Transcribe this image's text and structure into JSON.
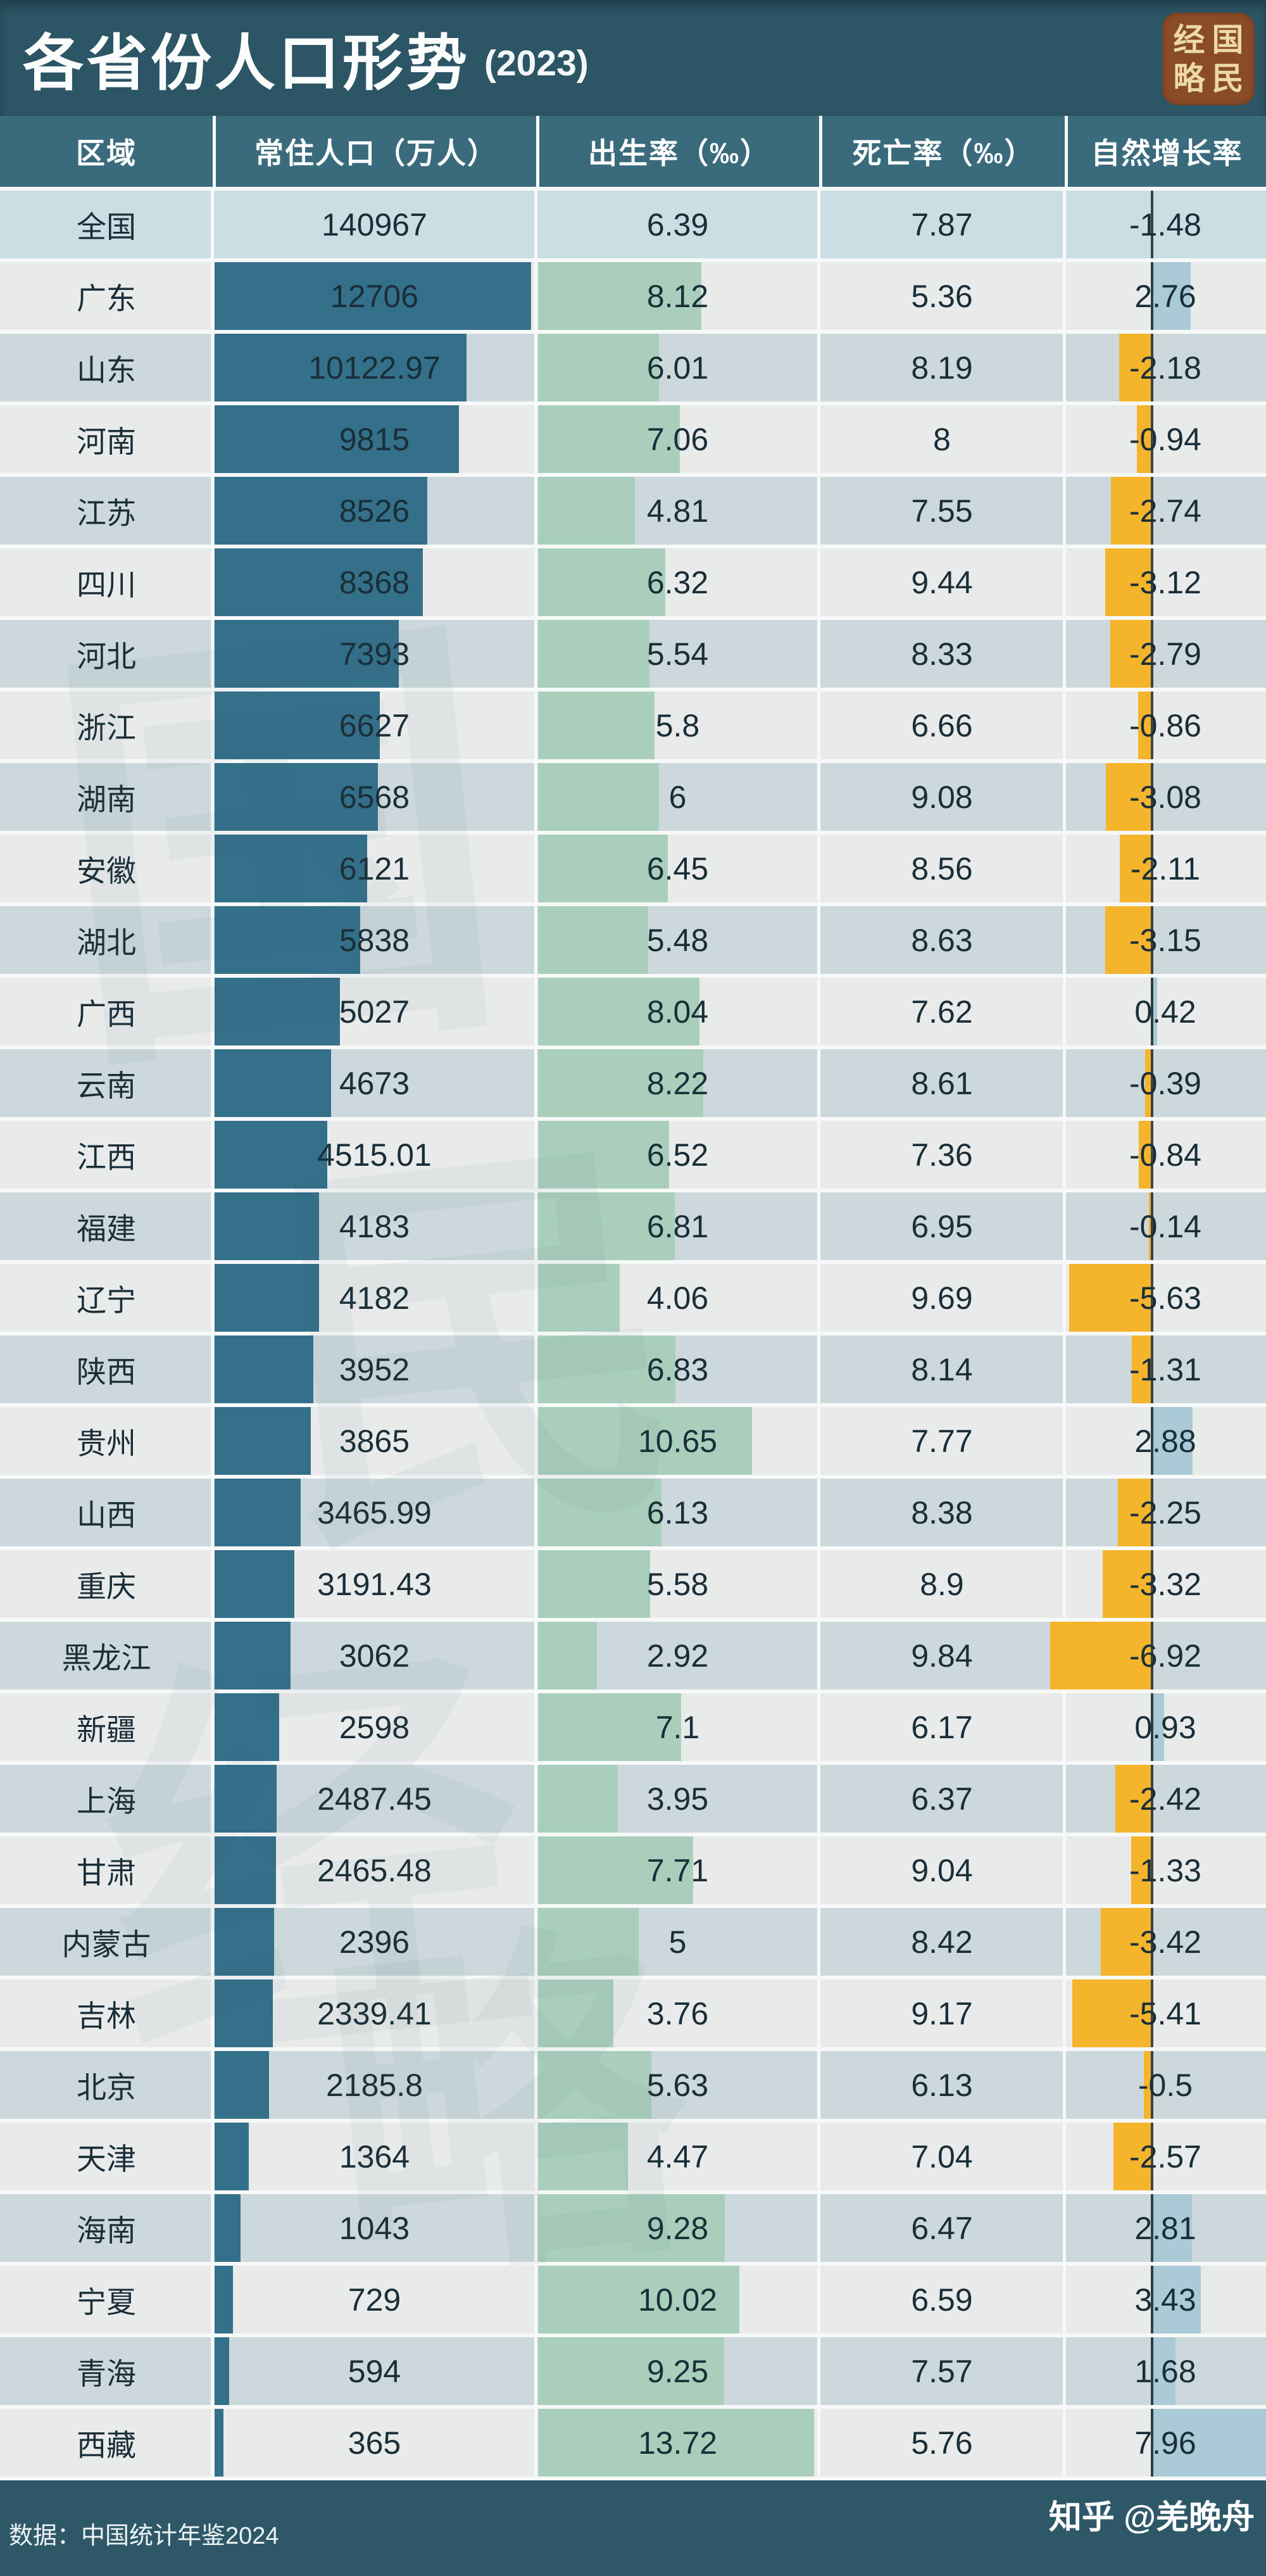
{
  "title": {
    "text": "各省份人口形势",
    "year": "(2023)"
  },
  "logo": {
    "chars": [
      "经",
      "国",
      "略",
      "民"
    ]
  },
  "header": {
    "columns": [
      "区域",
      "常住人口（万人）",
      "出生率（‰）",
      "死亡率（‰）",
      "自然增长率"
    ]
  },
  "rows": [
    {
      "region": "全国",
      "population": "140967",
      "birth_rate": "6.39",
      "death_rate": "7.87",
      "growth_rate": "-1.48"
    },
    {
      "region": "广东",
      "population": "12706",
      "birth_rate": "8.12",
      "death_rate": "5.36",
      "growth_rate": "2.76"
    },
    {
      "region": "山东",
      "population": "10122.97",
      "birth_rate": "6.01",
      "death_rate": "8.19",
      "growth_rate": "-2.18"
    },
    {
      "region": "河南",
      "population": "9815",
      "birth_rate": "7.06",
      "death_rate": "8",
      "growth_rate": "-0.94"
    },
    {
      "region": "江苏",
      "population": "8526",
      "birth_rate": "4.81",
      "death_rate": "7.55",
      "growth_rate": "-2.74"
    },
    {
      "region": "四川",
      "population": "8368",
      "birth_rate": "6.32",
      "death_rate": "9.44",
      "growth_rate": "-3.12"
    },
    {
      "region": "河北",
      "population": "7393",
      "birth_rate": "5.54",
      "death_rate": "8.33",
      "growth_rate": "-2.79"
    },
    {
      "region": "浙江",
      "population": "6627",
      "birth_rate": "5.8",
      "death_rate": "6.66",
      "growth_rate": "-0.86"
    },
    {
      "region": "湖南",
      "population": "6568",
      "birth_rate": "6",
      "death_rate": "9.08",
      "growth_rate": "-3.08"
    },
    {
      "region": "安徽",
      "population": "6121",
      "birth_rate": "6.45",
      "death_rate": "8.56",
      "growth_rate": "-2.11"
    },
    {
      "region": "湖北",
      "population": "5838",
      "birth_rate": "5.48",
      "death_rate": "8.63",
      "growth_rate": "-3.15"
    },
    {
      "region": "广西",
      "population": "5027",
      "birth_rate": "8.04",
      "death_rate": "7.62",
      "growth_rate": "0.42"
    },
    {
      "region": "云南",
      "population": "4673",
      "birth_rate": "8.22",
      "death_rate": "8.61",
      "growth_rate": "-0.39"
    },
    {
      "region": "江西",
      "population": "4515.01",
      "birth_rate": "6.52",
      "death_rate": "7.36",
      "growth_rate": "-0.84"
    },
    {
      "region": "福建",
      "population": "4183",
      "birth_rate": "6.81",
      "death_rate": "6.95",
      "growth_rate": "-0.14"
    },
    {
      "region": "辽宁",
      "population": "4182",
      "birth_rate": "4.06",
      "death_rate": "9.69",
      "growth_rate": "-5.63"
    },
    {
      "region": "陕西",
      "population": "3952",
      "birth_rate": "6.83",
      "death_rate": "8.14",
      "growth_rate": "-1.31"
    },
    {
      "region": "贵州",
      "population": "3865",
      "birth_rate": "10.65",
      "death_rate": "7.77",
      "growth_rate": "2.88"
    },
    {
      "region": "山西",
      "population": "3465.99",
      "birth_rate": "6.13",
      "death_rate": "8.38",
      "growth_rate": "-2.25"
    },
    {
      "region": "重庆",
      "population": "3191.43",
      "birth_rate": "5.58",
      "death_rate": "8.9",
      "growth_rate": "-3.32"
    },
    {
      "region": "黑龙江",
      "population": "3062",
      "birth_rate": "2.92",
      "death_rate": "9.84",
      "growth_rate": "-6.92"
    },
    {
      "region": "新疆",
      "population": "2598",
      "birth_rate": "7.1",
      "death_rate": "6.17",
      "growth_rate": "0.93"
    },
    {
      "region": "上海",
      "population": "2487.45",
      "birth_rate": "3.95",
      "death_rate": "6.37",
      "growth_rate": "-2.42"
    },
    {
      "region": "甘肃",
      "population": "2465.48",
      "birth_rate": "7.71",
      "death_rate": "9.04",
      "growth_rate": "-1.33"
    },
    {
      "region": "内蒙古",
      "population": "2396",
      "birth_rate": "5",
      "death_rate": "8.42",
      "growth_rate": "-3.42"
    },
    {
      "region": "吉林",
      "population": "2339.41",
      "birth_rate": "3.76",
      "death_rate": "9.17",
      "growth_rate": "-5.41"
    },
    {
      "region": "北京",
      "population": "2185.8",
      "birth_rate": "5.63",
      "death_rate": "6.13",
      "growth_rate": "-0.5"
    },
    {
      "region": "天津",
      "population": "1364",
      "birth_rate": "4.47",
      "death_rate": "7.04",
      "growth_rate": "-2.57"
    },
    {
      "region": "海南",
      "population": "1043",
      "birth_rate": "9.28",
      "death_rate": "6.47",
      "growth_rate": "2.81"
    },
    {
      "region": "宁夏",
      "population": "729",
      "birth_rate": "10.02",
      "death_rate": "6.59",
      "growth_rate": "3.43"
    },
    {
      "region": "青海",
      "population": "594",
      "birth_rate": "9.25",
      "death_rate": "7.57",
      "growth_rate": "1.68"
    },
    {
      "region": "西藏",
      "population": "365",
      "birth_rate": "13.72",
      "death_rate": "5.76",
      "growth_rate": "7.96"
    }
  ],
  "footer": {
    "source": "数据：中国统计年鉴2024",
    "credit": "知乎 @羌晚舟"
  },
  "watermark": {
    "chars": [
      "国",
      "民",
      "经",
      "略"
    ]
  },
  "colors": {
    "band_bg": "#2c5565",
    "header_bg": "#3a6b7d",
    "footer_bg": "#2e5868",
    "row_light": "#e9ebeb",
    "row_alt": "#ccd8dc",
    "row_total": "#c9dfe3",
    "divider": "#f7f9f9",
    "population_bar": "#34708a",
    "birth_rate_bar": "#a9cfbc",
    "growth_negative_bar": "#f4b42b",
    "growth_positive_bar": "#a9cad6",
    "zero_line": "rgba(16,22,25,0.78)",
    "text": "#1a2e38"
  },
  "chart_data": {
    "type": "table",
    "title": "各省份人口形势 (2023)",
    "categories": [
      "全国",
      "广东",
      "山东",
      "河南",
      "江苏",
      "四川",
      "河北",
      "浙江",
      "湖南",
      "安徽",
      "湖北",
      "广西",
      "云南",
      "江西",
      "福建",
      "辽宁",
      "陕西",
      "贵州",
      "山西",
      "重庆",
      "黑龙江",
      "新疆",
      "上海",
      "甘肃",
      "内蒙古",
      "吉林",
      "北京",
      "天津",
      "海南",
      "宁夏",
      "青海",
      "西藏"
    ],
    "series": [
      {
        "name": "常住人口（万人）",
        "values": [
          140967,
          12706,
          10122.97,
          9815,
          8526,
          8368,
          7393,
          6627,
          6568,
          6121,
          5838,
          5027,
          4673,
          4515.01,
          4183,
          4182,
          3952,
          3865,
          3465.99,
          3191.43,
          3062,
          2598,
          2487.45,
          2465.48,
          2396,
          2339.41,
          2185.8,
          1364,
          1043,
          729,
          594,
          365
        ]
      },
      {
        "name": "出生率（‰）",
        "values": [
          6.39,
          8.12,
          6.01,
          7.06,
          4.81,
          6.32,
          5.54,
          5.8,
          6,
          6.45,
          5.48,
          8.04,
          8.22,
          6.52,
          6.81,
          4.06,
          6.83,
          10.65,
          6.13,
          5.58,
          2.92,
          7.1,
          3.95,
          7.71,
          5,
          3.76,
          5.63,
          4.47,
          9.28,
          10.02,
          9.25,
          13.72
        ]
      },
      {
        "name": "死亡率（‰）",
        "values": [
          7.87,
          5.36,
          8.19,
          8,
          7.55,
          9.44,
          8.33,
          6.66,
          9.08,
          8.56,
          8.63,
          7.62,
          8.61,
          7.36,
          6.95,
          9.69,
          8.14,
          7.77,
          8.38,
          8.9,
          9.84,
          6.17,
          6.37,
          9.04,
          8.42,
          9.17,
          6.13,
          7.04,
          6.47,
          6.59,
          7.57,
          5.76
        ]
      },
      {
        "name": "自然增长率",
        "values": [
          -1.48,
          2.76,
          -2.18,
          -0.94,
          -2.74,
          -3.12,
          -2.79,
          -0.86,
          -3.08,
          -2.11,
          -3.15,
          0.42,
          -0.39,
          -0.84,
          -0.14,
          -5.63,
          -1.31,
          2.88,
          -2.25,
          -3.32,
          -6.92,
          0.93,
          -2.42,
          -1.33,
          -3.42,
          -5.41,
          -0.5,
          -2.57,
          2.81,
          3.43,
          1.68,
          7.96
        ]
      }
    ],
    "layout": {
      "in_cell_bars": "population=teal from column left; birth_rate=green from column left; natural growth=yellow left of zero line when negative, light blue right of zero line when positive; first row (全国) highlighted with no bars",
      "grid": "white column dividers and white row gaps, dark zero axis line in last column"
    }
  }
}
